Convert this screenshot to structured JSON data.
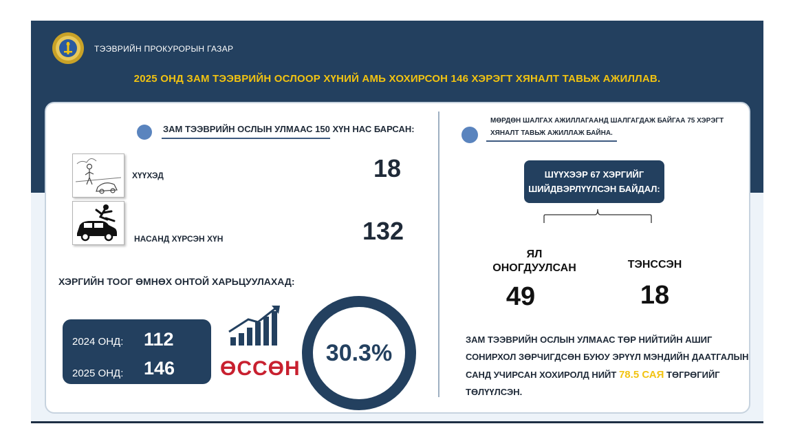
{
  "header": {
    "organization": "ТЭЭВРИЙН ПРОКУРОРЫН ГАЗАР",
    "headline": "2025 ОНД ЗАМ ТЭЭВРИЙН ОСЛООР ХҮНИЙ АМЬ ХОХИРСОН 146 ХЭРЭГТ ХЯНАЛТ ТАВЬЖ АЖИЛЛАВ."
  },
  "left": {
    "deaths_heading": "ЗАМ ТЭЭВРИЙН ОСЛЫН УЛМААС 150 ХҮН НАС БАРСАН:",
    "children": {
      "label": "ХҮҮХЭД",
      "value": "18"
    },
    "adults": {
      "label": "НАСАНД ХҮРСЭН ХҮН",
      "value": "132"
    },
    "compare_heading": "ХЭРГИЙН ТООГ ӨМНӨХ ОНТОЙ ХАРЬЦУУЛАХАД:",
    "years": [
      {
        "label": "2024 ОНД:",
        "value": "112"
      },
      {
        "label": "2025 ОНД:",
        "value": "146"
      }
    ],
    "growth_word": "ӨССӨН",
    "growth_percent": "30.3%"
  },
  "right": {
    "investigation_line1": "МӨРДӨН ШАЛГАХ АЖИЛЛАГААНД ШАЛГАГДАЖ БАЙГАА 75 ХЭРЭГТ",
    "investigation_line2": "ХЯНАЛТ ТАВЬЖ АЖИЛЛАЖ БАЙНА.",
    "court_line1": "ШҮҮХЭЭР 67 ХЭРГИЙГ",
    "court_line2": "ШИЙДВЭРЛҮҮЛСЭН БАЙДАЛ:",
    "sentenced": {
      "label_line1": "ЯЛ",
      "label_line2": "ОНОГДУУЛСАН",
      "value": "49"
    },
    "acquitted": {
      "label": "ТЭНССЭН",
      "value": "18"
    },
    "compensation_line1": "ЗАМ ТЭЭВРИЙН ОСЛЫН УЛМААС ТӨР НИЙТИЙН АШИГ",
    "compensation_line2": "СОНИРХОЛ ЗӨРЧИГДСӨН БУЮУ ЭРҮҮЛ МЭНДИЙН ДААТГАЛЫН",
    "compensation_line3_pre": "САНД УЧИРСАН ХОХИРОЛД НИЙТ",
    "compensation_amount": "78.5 САЯ",
    "compensation_line3_post": "ТӨГРӨГИЙГ",
    "compensation_line4": "ТӨЛҮҮЛСЭН."
  },
  "colors": {
    "navy": "#23405f",
    "gold": "#f2c311",
    "growth_red": "#c8202f",
    "bullet_blue": "#5a84be"
  },
  "icons": [
    "prosecutor-emblem-icon",
    "bullet-dot-icon",
    "child-accident-icon",
    "car-pedestrian-icon",
    "growth-chart-icon"
  ]
}
